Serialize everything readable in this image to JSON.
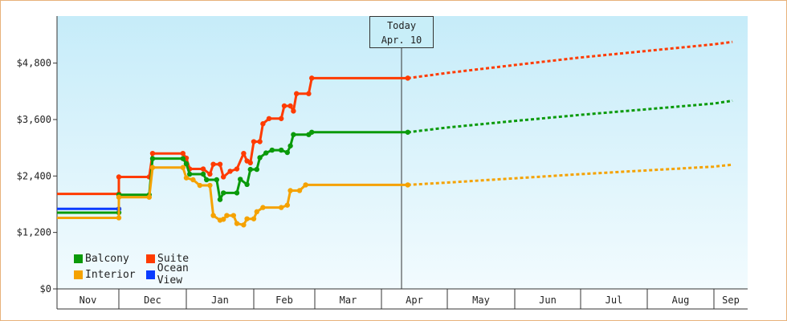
{
  "chart_data": {
    "type": "line",
    "title": "",
    "xlabel": "",
    "ylabel": "",
    "ylim": [
      0,
      5800
    ],
    "yticks": [
      0,
      1200,
      2400,
      3600,
      4800
    ],
    "ytick_labels": [
      "$0",
      "$1,200",
      "$2,400",
      "$3,600",
      "$4,800"
    ],
    "months": [
      "Nov",
      "Dec",
      "Jan",
      "Feb",
      "Mar",
      "Apr",
      "May",
      "Jun",
      "Jul",
      "Aug",
      "Sep"
    ],
    "today": {
      "label": "Today",
      "date": "Apr. 10"
    },
    "legend": [
      "Balcony",
      "Suite",
      "Interior",
      "Ocean View"
    ],
    "series": [
      {
        "name": "Suite",
        "color": "#ff3b00",
        "values": [
          [
            0,
            2020
          ],
          [
            1,
            2020
          ],
          [
            1,
            2380
          ],
          [
            1.45,
            2380
          ],
          [
            1.5,
            2880
          ],
          [
            1.95,
            2880
          ],
          [
            2,
            2780
          ],
          [
            2.05,
            2550
          ],
          [
            2.25,
            2550
          ],
          [
            2.35,
            2440
          ],
          [
            2.4,
            2650
          ],
          [
            2.5,
            2650
          ],
          [
            2.55,
            2380
          ],
          [
            2.65,
            2500
          ],
          [
            2.75,
            2550
          ],
          [
            2.85,
            2880
          ],
          [
            2.9,
            2720
          ],
          [
            2.95,
            2680
          ],
          [
            3.0,
            3130
          ],
          [
            3.1,
            3130
          ],
          [
            3.15,
            3510
          ],
          [
            3.25,
            3620
          ],
          [
            3.45,
            3620
          ],
          [
            3.5,
            3890
          ],
          [
            3.6,
            3890
          ],
          [
            3.65,
            3780
          ],
          [
            3.7,
            4150
          ],
          [
            3.9,
            4150
          ],
          [
            3.95,
            4480
          ],
          [
            5.4,
            4480
          ]
        ],
        "forecast": [
          [
            5.4,
            4480
          ],
          [
            6,
            4590
          ],
          [
            7,
            4760
          ],
          [
            8,
            4920
          ],
          [
            9,
            5060
          ],
          [
            10,
            5200
          ],
          [
            10.55,
            5250
          ]
        ]
      },
      {
        "name": "Balcony",
        "color": "#0a9a0a",
        "values": [
          [
            0,
            1620
          ],
          [
            1,
            1620
          ],
          [
            1,
            2000
          ],
          [
            1.45,
            2000
          ],
          [
            1.5,
            2770
          ],
          [
            1.95,
            2770
          ],
          [
            2,
            2660
          ],
          [
            2.05,
            2440
          ],
          [
            2.25,
            2440
          ],
          [
            2.3,
            2320
          ],
          [
            2.45,
            2320
          ],
          [
            2.5,
            1900
          ],
          [
            2.55,
            2040
          ],
          [
            2.75,
            2040
          ],
          [
            2.8,
            2330
          ],
          [
            2.9,
            2220
          ],
          [
            2.95,
            2540
          ],
          [
            3.05,
            2540
          ],
          [
            3.1,
            2790
          ],
          [
            3.2,
            2890
          ],
          [
            3.3,
            2950
          ],
          [
            3.45,
            2950
          ],
          [
            3.55,
            2900
          ],
          [
            3.6,
            3040
          ],
          [
            3.65,
            3280
          ],
          [
            3.9,
            3280
          ],
          [
            3.95,
            3330
          ],
          [
            5.4,
            3330
          ]
        ],
        "forecast": [
          [
            5.4,
            3330
          ],
          [
            6,
            3430
          ],
          [
            7,
            3570
          ],
          [
            8,
            3700
          ],
          [
            9,
            3820
          ],
          [
            10,
            3940
          ],
          [
            10.55,
            4000
          ]
        ]
      },
      {
        "name": "Ocean View",
        "color": "#0a3cff",
        "values": [
          [
            0,
            1700
          ],
          [
            1,
            1700
          ]
        ],
        "forecast": []
      },
      {
        "name": "Interior",
        "color": "#f5a200",
        "values": [
          [
            0,
            1510
          ],
          [
            1,
            1510
          ],
          [
            1,
            1950
          ],
          [
            1.45,
            1950
          ],
          [
            1.5,
            2580
          ],
          [
            1.95,
            2580
          ],
          [
            2,
            2360
          ],
          [
            2.1,
            2320
          ],
          [
            2.2,
            2200
          ],
          [
            2.35,
            2200
          ],
          [
            2.4,
            1560
          ],
          [
            2.5,
            1460
          ],
          [
            2.55,
            1480
          ],
          [
            2.6,
            1560
          ],
          [
            2.7,
            1560
          ],
          [
            2.75,
            1390
          ],
          [
            2.85,
            1360
          ],
          [
            2.9,
            1490
          ],
          [
            3.0,
            1490
          ],
          [
            3.05,
            1640
          ],
          [
            3.15,
            1730
          ],
          [
            3.45,
            1730
          ],
          [
            3.55,
            1780
          ],
          [
            3.6,
            2090
          ],
          [
            3.75,
            2090
          ],
          [
            3.85,
            2210
          ],
          [
            5.4,
            2210
          ]
        ],
        "forecast": [
          [
            5.4,
            2210
          ],
          [
            6,
            2260
          ],
          [
            7,
            2350
          ],
          [
            8,
            2440
          ],
          [
            9,
            2520
          ],
          [
            10,
            2600
          ],
          [
            10.55,
            2640
          ]
        ]
      }
    ]
  },
  "legend_items": {
    "balcony": "Balcony",
    "suite": "Suite",
    "interior": "Interior",
    "ocean_view": "Ocean View"
  },
  "colors": {
    "balcony": "#0a9a0a",
    "suite": "#ff3b00",
    "interior": "#f5a200",
    "ocean_view": "#0a3cff",
    "frame": "#e8b27a"
  }
}
